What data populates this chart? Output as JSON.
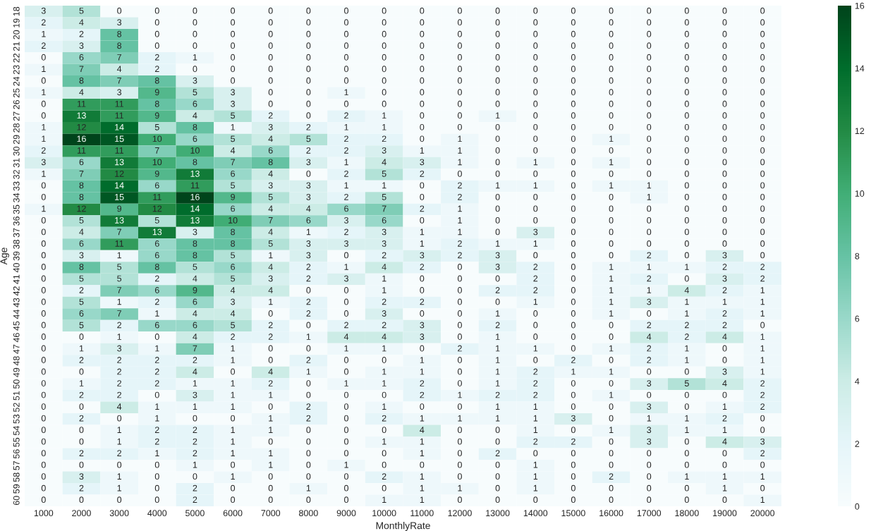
{
  "chart_data": {
    "type": "heatmap",
    "xlabel": "MonthlyRate",
    "ylabel": "Age",
    "categories": [
      "1000",
      "2000",
      "3000",
      "4000",
      "5000",
      "6000",
      "7000",
      "8000",
      "9000",
      "10000",
      "11000",
      "12000",
      "13000",
      "14000",
      "15000",
      "16000",
      "17000",
      "18000",
      "19000",
      "20000"
    ],
    "y_categories": [
      "18",
      "19",
      "20",
      "21",
      "22",
      "23",
      "24",
      "25",
      "26",
      "27",
      "28",
      "29",
      "30",
      "31",
      "32",
      "33",
      "34",
      "35",
      "36",
      "37",
      "38",
      "39",
      "40",
      "41",
      "42",
      "43",
      "44",
      "45",
      "46",
      "47",
      "48",
      "49",
      "50",
      "51",
      "52",
      "53",
      "54",
      "55",
      "56",
      "57",
      "58",
      "59",
      "60"
    ],
    "cells": [
      [
        3,
        5,
        0,
        0,
        0,
        0,
        0,
        0,
        0,
        0,
        0,
        0,
        0,
        0,
        0,
        0,
        0,
        0,
        0,
        0
      ],
      [
        2,
        4,
        3,
        0,
        0,
        0,
        0,
        0,
        0,
        0,
        0,
        0,
        0,
        0,
        0,
        0,
        0,
        0,
        0,
        0
      ],
      [
        1,
        2,
        8,
        0,
        0,
        0,
        0,
        0,
        0,
        0,
        0,
        0,
        0,
        0,
        0,
        0,
        0,
        0,
        0,
        0
      ],
      [
        2,
        3,
        8,
        0,
        0,
        0,
        0,
        0,
        0,
        0,
        0,
        0,
        0,
        0,
        0,
        0,
        0,
        0,
        0,
        0
      ],
      [
        0,
        6,
        7,
        2,
        1,
        0,
        0,
        0,
        0,
        0,
        0,
        0,
        0,
        0,
        0,
        0,
        0,
        0,
        0,
        0
      ],
      [
        1,
        7,
        4,
        2,
        0,
        0,
        0,
        0,
        0,
        0,
        0,
        0,
        0,
        0,
        0,
        0,
        0,
        0,
        0,
        0
      ],
      [
        0,
        8,
        7,
        8,
        3,
        0,
        0,
        0,
        0,
        0,
        0,
        0,
        0,
        0,
        0,
        0,
        0,
        0,
        0,
        0
      ],
      [
        1,
        4,
        3,
        9,
        5,
        3,
        0,
        0,
        1,
        0,
        0,
        0,
        0,
        0,
        0,
        0,
        0,
        0,
        0,
        0
      ],
      [
        0,
        11,
        11,
        8,
        6,
        3,
        0,
        0,
        0,
        0,
        0,
        0,
        0,
        0,
        0,
        0,
        0,
        0,
        0,
        0
      ],
      [
        0,
        13,
        11,
        9,
        4,
        5,
        2,
        0,
        2,
        1,
        0,
        0,
        1,
        0,
        0,
        0,
        0,
        0,
        0,
        0
      ],
      [
        1,
        12,
        14,
        5,
        8,
        1,
        3,
        2,
        1,
        1,
        0,
        0,
        0,
        0,
        0,
        0,
        0,
        0,
        0,
        0
      ],
      [
        1,
        16,
        15,
        10,
        6,
        5,
        4,
        5,
        2,
        2,
        0,
        1,
        0,
        0,
        0,
        1,
        0,
        0,
        0,
        0
      ],
      [
        2,
        11,
        11,
        7,
        10,
        4,
        6,
        2,
        2,
        3,
        1,
        1,
        0,
        0,
        0,
        0,
        0,
        0,
        0,
        0
      ],
      [
        3,
        6,
        13,
        10,
        8,
        7,
        8,
        3,
        1,
        4,
        3,
        1,
        0,
        1,
        0,
        1,
        0,
        0,
        0,
        0
      ],
      [
        1,
        7,
        12,
        9,
        13,
        6,
        4,
        0,
        2,
        5,
        2,
        0,
        0,
        0,
        0,
        0,
        0,
        0,
        0,
        0
      ],
      [
        0,
        8,
        14,
        6,
        11,
        5,
        3,
        3,
        1,
        1,
        0,
        2,
        1,
        1,
        0,
        1,
        1,
        0,
        0,
        0
      ],
      [
        0,
        8,
        15,
        11,
        16,
        9,
        5,
        3,
        2,
        5,
        0,
        2,
        0,
        0,
        0,
        0,
        1,
        0,
        0,
        0
      ],
      [
        1,
        12,
        9,
        12,
        14,
        6,
        4,
        4,
        6,
        7,
        2,
        1,
        0,
        0,
        0,
        0,
        0,
        0,
        0,
        0
      ],
      [
        0,
        5,
        13,
        5,
        13,
        10,
        7,
        6,
        3,
        6,
        0,
        1,
        0,
        0,
        0,
        0,
        0,
        0,
        0,
        0
      ],
      [
        0,
        4,
        7,
        13,
        3,
        8,
        4,
        1,
        2,
        3,
        1,
        1,
        0,
        3,
        0,
        0,
        0,
        0,
        0,
        0
      ],
      [
        0,
        6,
        11,
        6,
        8,
        8,
        5,
        3,
        3,
        3,
        1,
        2,
        1,
        1,
        0,
        0,
        0,
        0,
        0,
        0
      ],
      [
        0,
        3,
        1,
        6,
        8,
        5,
        1,
        3,
        0,
        2,
        3,
        2,
        3,
        0,
        0,
        0,
        2,
        0,
        3,
        0
      ],
      [
        0,
        8,
        5,
        8,
        5,
        6,
        4,
        2,
        1,
        4,
        2,
        0,
        3,
        2,
        0,
        1,
        1,
        1,
        2,
        2
      ],
      [
        0,
        5,
        5,
        2,
        4,
        5,
        3,
        2,
        3,
        1,
        0,
        0,
        0,
        2,
        0,
        1,
        2,
        0,
        3,
        2
      ],
      [
        0,
        2,
        7,
        6,
        9,
        4,
        4,
        0,
        0,
        1,
        0,
        0,
        2,
        2,
        0,
        1,
        1,
        4,
        2,
        1
      ],
      [
        0,
        5,
        1,
        2,
        6,
        3,
        1,
        2,
        0,
        2,
        2,
        0,
        0,
        1,
        0,
        1,
        3,
        1,
        1,
        1
      ],
      [
        0,
        6,
        7,
        1,
        4,
        4,
        0,
        2,
        0,
        3,
        0,
        0,
        1,
        0,
        0,
        1,
        0,
        1,
        2,
        1
      ],
      [
        0,
        5,
        2,
        6,
        6,
        5,
        2,
        0,
        2,
        2,
        3,
        0,
        2,
        0,
        0,
        0,
        2,
        2,
        2,
        0
      ],
      [
        0,
        0,
        1,
        0,
        4,
        2,
        2,
        1,
        4,
        4,
        3,
        0,
        1,
        0,
        0,
        0,
        4,
        2,
        4,
        1
      ],
      [
        0,
        1,
        3,
        1,
        7,
        1,
        0,
        0,
        1,
        1,
        0,
        2,
        1,
        1,
        0,
        1,
        2,
        1,
        0,
        1
      ],
      [
        0,
        2,
        2,
        2,
        2,
        1,
        0,
        2,
        0,
        0,
        1,
        0,
        1,
        0,
        2,
        0,
        2,
        1,
        0,
        1
      ],
      [
        0,
        0,
        2,
        2,
        4,
        0,
        4,
        1,
        0,
        1,
        1,
        0,
        1,
        2,
        1,
        1,
        0,
        0,
        3,
        1
      ],
      [
        0,
        1,
        2,
        2,
        1,
        1,
        2,
        0,
        1,
        1,
        2,
        0,
        1,
        2,
        0,
        0,
        3,
        5,
        4,
        2
      ],
      [
        0,
        2,
        2,
        0,
        3,
        1,
        1,
        0,
        0,
        0,
        2,
        1,
        2,
        2,
        0,
        1,
        0,
        0,
        0,
        2
      ],
      [
        0,
        0,
        4,
        1,
        1,
        1,
        0,
        2,
        0,
        1,
        0,
        0,
        1,
        1,
        0,
        0,
        3,
        0,
        1,
        2
      ],
      [
        0,
        2,
        0,
        1,
        0,
        0,
        1,
        2,
        0,
        2,
        1,
        1,
        1,
        1,
        3,
        0,
        1,
        1,
        2,
        0
      ],
      [
        0,
        0,
        1,
        2,
        2,
        1,
        1,
        0,
        0,
        0,
        4,
        0,
        0,
        1,
        0,
        1,
        3,
        1,
        1,
        0
      ],
      [
        0,
        0,
        1,
        2,
        2,
        1,
        0,
        0,
        0,
        1,
        1,
        0,
        0,
        2,
        2,
        0,
        3,
        0,
        4,
        3
      ],
      [
        0,
        2,
        2,
        1,
        2,
        1,
        1,
        0,
        0,
        0,
        1,
        0,
        2,
        0,
        0,
        0,
        0,
        0,
        0,
        2
      ],
      [
        0,
        0,
        0,
        0,
        1,
        0,
        1,
        0,
        1,
        0,
        0,
        0,
        0,
        1,
        0,
        0,
        0,
        0,
        0,
        0
      ],
      [
        0,
        3,
        1,
        0,
        0,
        1,
        0,
        0,
        0,
        2,
        1,
        0,
        0,
        1,
        0,
        2,
        0,
        1,
        1,
        1
      ],
      [
        0,
        2,
        1,
        0,
        2,
        0,
        0,
        1,
        0,
        0,
        1,
        1,
        0,
        1,
        0,
        0,
        0,
        0,
        1,
        0
      ],
      [
        0,
        0,
        0,
        0,
        2,
        0,
        0,
        0,
        0,
        1,
        1,
        0,
        0,
        0,
        0,
        0,
        0,
        0,
        0,
        1
      ]
    ],
    "clim": [
      0,
      16
    ],
    "cticks": [
      0,
      2,
      4,
      6,
      8,
      10,
      12,
      14,
      16
    ],
    "data_labels": true
  }
}
